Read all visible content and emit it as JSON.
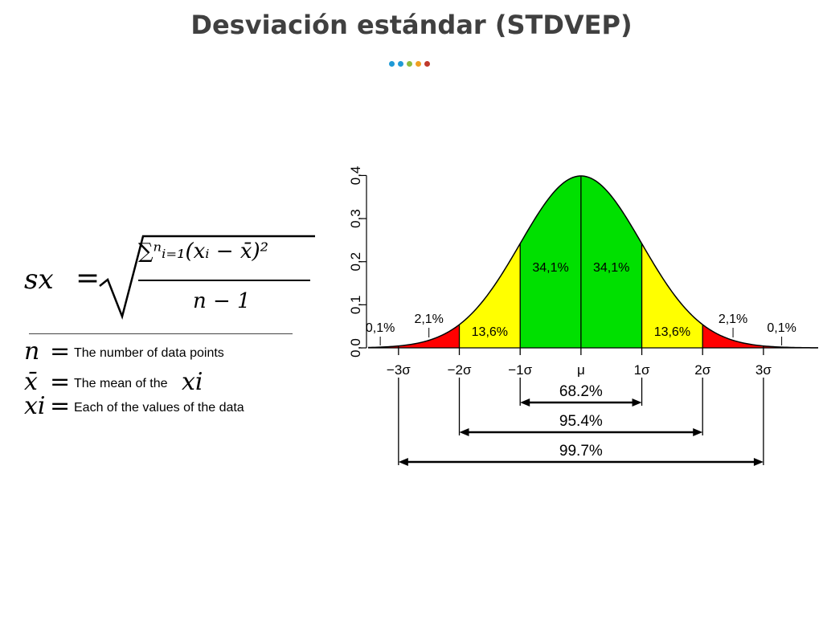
{
  "title": "Desviación estándar (STDVEP)",
  "dot_colors": [
    "#1f9ad6",
    "#1f9ad6",
    "#8dbb3d",
    "#f0a020",
    "#c0392b"
  ],
  "formula": {
    "lhs": "sx",
    "numerator": "∑ⁿᵢ₌₁(xᵢ − x̄)²",
    "denominator": "n − 1"
  },
  "legend": [
    {
      "symbol": "n",
      "text": "The number of data points"
    },
    {
      "symbol": "x̄",
      "text": "The mean of the",
      "suffix": "xi"
    },
    {
      "symbol": "xi",
      "text": "Each of the values of the data"
    }
  ],
  "chart_data": {
    "type": "area",
    "distribution": "normal",
    "x_tick_labels": [
      "−3σ",
      "−2σ",
      "−1σ",
      "μ",
      "1σ",
      "2σ",
      "3σ"
    ],
    "y_ticks": [
      "0,0",
      "0,1",
      "0,2",
      "0,3",
      "0,4"
    ],
    "ylim": [
      0,
      0.4
    ],
    "xlim": [
      -3.5,
      3.9
    ],
    "regions": [
      {
        "from": -3,
        "to": -2,
        "color": "#ff0000",
        "label": "2,1%"
      },
      {
        "from": -2,
        "to": -1,
        "color": "#ffff00",
        "label": "13,6%"
      },
      {
        "from": -1,
        "to": 0,
        "color": "#00e000",
        "label": "34,1%"
      },
      {
        "from": 0,
        "to": 1,
        "color": "#00e000",
        "label": "34,1%"
      },
      {
        "from": 1,
        "to": 2,
        "color": "#ffff00",
        "label": "13,6%"
      },
      {
        "from": 2,
        "to": 3,
        "color": "#ff0000",
        "label": "2,1%"
      }
    ],
    "tail_labels": [
      "0,1%",
      "0,1%"
    ],
    "intervals": [
      {
        "from": -1,
        "to": 1,
        "label": "68.2%"
      },
      {
        "from": -2,
        "to": 2,
        "label": "95.4%"
      },
      {
        "from": -3,
        "to": 3,
        "label": "99.7%"
      }
    ]
  }
}
